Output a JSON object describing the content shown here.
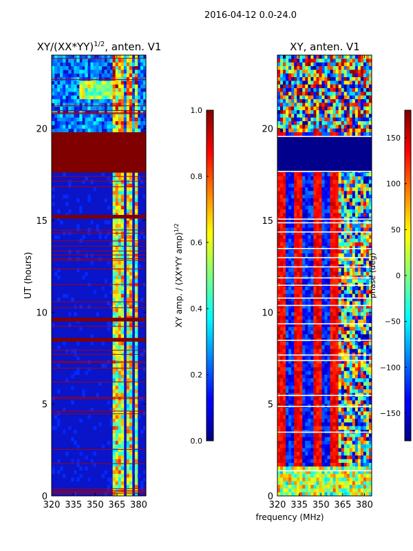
{
  "figure": {
    "suptitle": "2016-04-12 0.0-24.0",
    "shared_xlabel": "frequency (MHz)"
  },
  "chart_data": [
    {
      "type": "heatmap",
      "title_base": "XY/(XX*YY)",
      "title_sup": "1/2",
      "title_rest": ", anten. V1",
      "xlabel": "",
      "ylabel": "UT (hours)",
      "xlim": [
        320,
        385
      ],
      "ylim": [
        0,
        24
      ],
      "xticks": [
        320,
        335,
        350,
        365,
        380
      ],
      "yticks": [
        0,
        5,
        10,
        15,
        20
      ],
      "colorbar": {
        "label_base": "XY amp. / (XX*YY amp)",
        "label_sup": "1/2",
        "range": [
          0.0,
          1.0
        ],
        "ticks": [
          "0.0",
          "0.2",
          "0.4",
          "0.6",
          "0.8",
          "1.0"
        ],
        "tick_values": [
          0.0,
          0.2,
          0.4,
          0.6,
          0.8,
          1.0
        ]
      },
      "saturated_bands_hours": [
        [
          17.6,
          19.8
        ],
        [
          15.1,
          15.3
        ],
        [
          9.5,
          9.7
        ],
        [
          8.4,
          8.6
        ]
      ],
      "bright_bands_mhz": [
        [
          363,
          370
        ],
        [
          372,
          375
        ],
        [
          377,
          380
        ]
      ]
    },
    {
      "type": "heatmap",
      "title": "XY, anten. V1",
      "xlabel": "frequency (MHz)",
      "ylabel": "",
      "xlim": [
        320,
        385
      ],
      "ylim": [
        0,
        24
      ],
      "xticks": [
        320,
        335,
        350,
        365,
        380
      ],
      "yticks": [
        0,
        5,
        10,
        15,
        20
      ],
      "colorbar": {
        "label": "phase (deg)",
        "range": [
          -180,
          180
        ],
        "ticks": [
          "−150",
          "−100",
          "−50",
          "0",
          "50",
          "100",
          "150"
        ],
        "tick_values": [
          -150,
          -100,
          -50,
          0,
          50,
          100,
          150
        ]
      },
      "flat_band_hours": [
        17.7,
        19.6
      ],
      "white_lines_hours": [
        1.4,
        3.5,
        4.9,
        5.5,
        7.4,
        7.7,
        8.5,
        9.4,
        10.4,
        10.8,
        11.5,
        11.9,
        12.5,
        13.0,
        13.5,
        14.4,
        14.9,
        15.1,
        17.7,
        19.6
      ]
    }
  ]
}
